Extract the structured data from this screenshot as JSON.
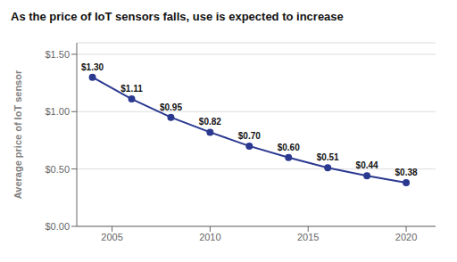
{
  "chart_data": {
    "type": "line",
    "title": "As the price of IoT sensors falls, use is expected to increase",
    "y_label": "Average price of IoT sensor",
    "x": [
      2004,
      2006,
      2008,
      2010,
      2012,
      2014,
      2016,
      2018,
      2020
    ],
    "values": [
      1.3,
      1.11,
      0.95,
      0.82,
      0.7,
      0.6,
      0.51,
      0.44,
      0.38
    ],
    "value_labels": [
      "$1.30",
      "$1.11",
      "$0.95",
      "$0.82",
      "$0.70",
      "$0.60",
      "$0.51",
      "$0.44",
      "$0.38"
    ],
    "data_labels": true,
    "color": "#2b3990",
    "marker": "circle",
    "line_style": "solid",
    "xlim": [
      2003.2,
      2021.5
    ],
    "xticks": [
      2005,
      2010,
      2015,
      2020
    ],
    "ylim": [
      0.0,
      1.6
    ],
    "yticks": [
      {
        "value": 0.0,
        "label": "$0.00"
      },
      {
        "value": 0.5,
        "label": "$0.50"
      },
      {
        "value": 1.0,
        "label": "$1.00"
      },
      {
        "value": 1.5,
        "label": "$1.50"
      }
    ],
    "grid": true
  }
}
